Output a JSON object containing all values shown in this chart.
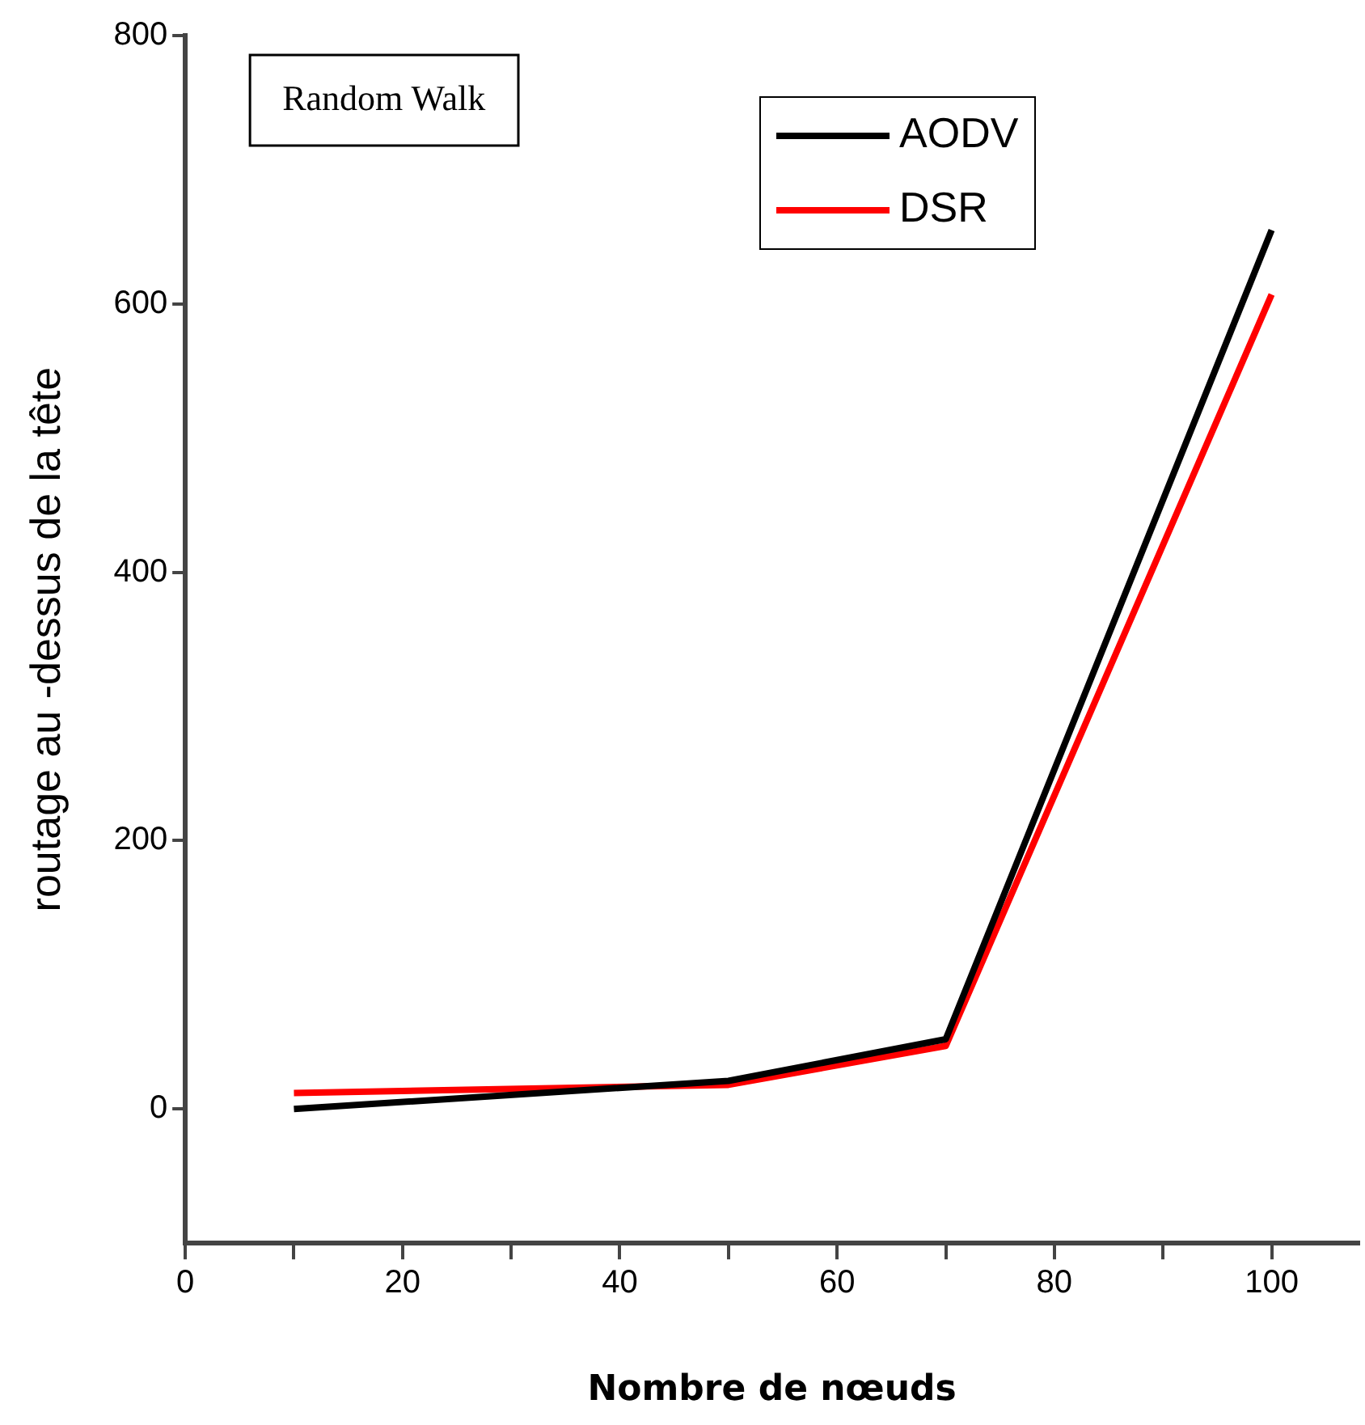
{
  "chart_data": {
    "type": "line",
    "xlabel": "Nombre de nœuds",
    "ylabel": "routage au -dessus de la tête",
    "annotations": [
      "Random Walk"
    ],
    "x": [
      10,
      50,
      70,
      100
    ],
    "series": [
      {
        "name": "AODV",
        "color": "#000000",
        "values": [
          0,
          21,
          52,
          655
        ]
      },
      {
        "name": "DSR",
        "color": "#ff0000",
        "values": [
          12,
          18,
          47,
          607
        ]
      }
    ],
    "xlim": [
      0,
      108
    ],
    "xticks": [
      0,
      {
        "value": 10,
        "label": null
      },
      20,
      {
        "value": 30,
        "label": null
      },
      40,
      {
        "value": 50,
        "label": null
      },
      60,
      {
        "value": 70,
        "label": null
      },
      80,
      {
        "value": 90,
        "label": null
      },
      100
    ],
    "ylim": [
      -100,
      800
    ],
    "yticks": [
      0,
      200,
      400,
      600,
      800
    ],
    "grid": false,
    "legend": "top right",
    "marker": "none",
    "line_style": "solid"
  }
}
